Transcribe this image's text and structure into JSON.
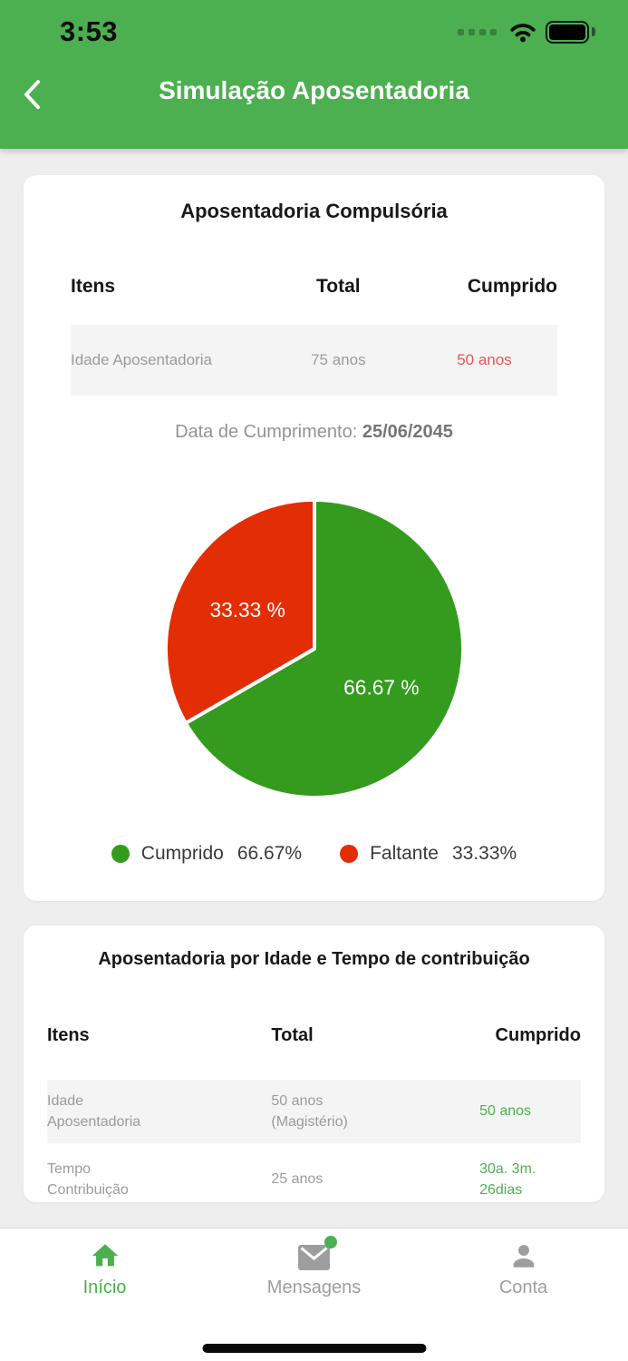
{
  "theme": {
    "header_bg": "#4CAF50",
    "accent_green": "#4CAF50",
    "pie_green": "#349B1E",
    "pie_red": "#E32D04",
    "warning_red": "#EF5350",
    "inactive_gray": "#9E9E9E"
  },
  "status_bar": {
    "time": "3:53"
  },
  "nav": {
    "back_icon": "chevron-left-icon",
    "title": "Simulação Aposentadoria"
  },
  "cards": [
    {
      "title": "Aposentadoria Compulsória",
      "columns": {
        "item": "Itens",
        "total": "Total",
        "cumprido": "Cumprido"
      },
      "rows": [
        {
          "item": "Idade Aposentadoria",
          "total": "75 anos",
          "cumprido": "50 anos",
          "cumprido_color": "#EF5350"
        }
      ],
      "date_label": "Data de Cumprimento: ",
      "date_value": "25/06/2045"
    },
    {
      "title": "Aposentadoria por Idade e Tempo de contribuição",
      "columns": {
        "item": "Itens",
        "total": "Total",
        "cumprido": "Cumprido"
      },
      "rows": [
        {
          "item": "Idade Aposentadoria",
          "total": "50 anos (Magistério)",
          "cumprido": "50 anos",
          "cumprido_color": "#4CAF50"
        },
        {
          "item": "Tempo Contribuição",
          "total": "25 anos",
          "cumprido": "30a. 3m. 26dias",
          "cumprido_color": "#4CAF50"
        }
      ]
    }
  ],
  "chart_data": {
    "type": "pie",
    "title": "",
    "start_angle_deg": 0,
    "direction": "clockwise",
    "slices": [
      {
        "label": "Cumprido",
        "value": 66.67,
        "color": "#349B1E",
        "data_label": "66.67 %"
      },
      {
        "label": "Faltante",
        "value": 33.33,
        "color": "#E32D04",
        "data_label": "33.33 %"
      }
    ],
    "legend_position": "bottom",
    "legend": [
      {
        "label": "Cumprido",
        "value": "66.67%",
        "color": "#349B1E"
      },
      {
        "label": "Faltante",
        "value": "33.33%",
        "color": "#E32D04"
      }
    ]
  },
  "tab_bar": {
    "items": [
      {
        "label": "Início",
        "icon": "home-icon",
        "color": "#4CAF50",
        "active": true
      },
      {
        "label": "Mensagens",
        "icon": "envelope-icon",
        "color": "#9E9E9E",
        "badge": true
      },
      {
        "label": "Conta",
        "icon": "person-icon",
        "color": "#9E9E9E"
      }
    ]
  }
}
